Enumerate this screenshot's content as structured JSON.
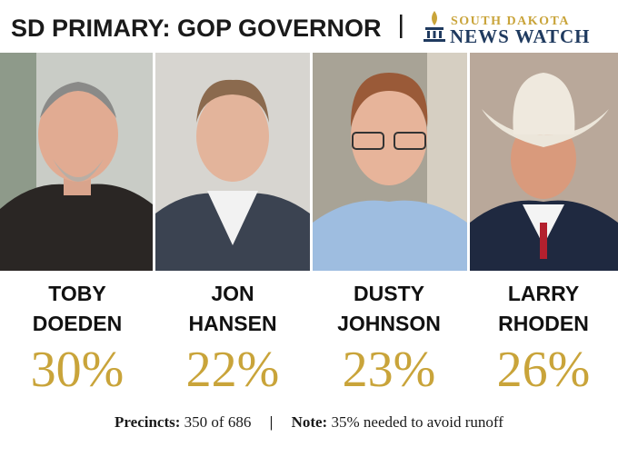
{
  "header": {
    "title": "SD PRIMARY: GOP GOVERNOR",
    "logo_top": "SOUTH DAKOTA",
    "logo_bottom": "NEWS WATCH"
  },
  "candidates": [
    {
      "first": "TOBY",
      "last": "DOEDEN",
      "percent": "30%"
    },
    {
      "first": "JON",
      "last": "HANSEN",
      "percent": "22%"
    },
    {
      "first": "DUSTY",
      "last": "JOHNSON",
      "percent": "23%"
    },
    {
      "first": "LARRY",
      "last": "RHODEN",
      "percent": "26%"
    }
  ],
  "footer": {
    "precincts_label": "Precincts:",
    "precincts_value": "350 of 686",
    "note_label": "Note:",
    "note_value": "35% needed to avoid runoff"
  }
}
